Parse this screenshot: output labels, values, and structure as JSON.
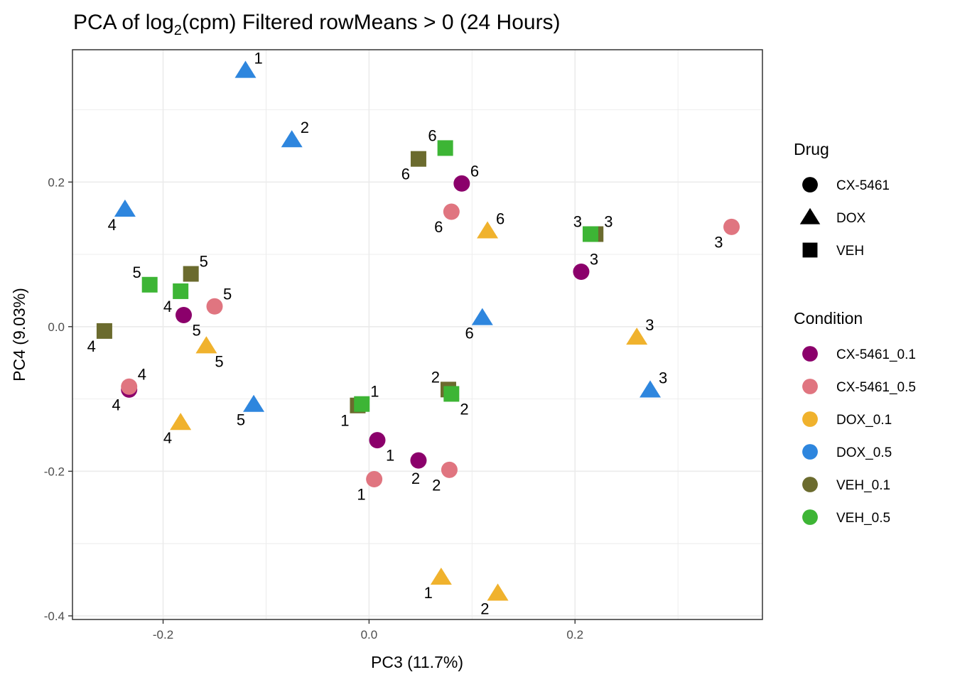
{
  "chart_data": {
    "type": "scatter",
    "title_prefix": "PCA of log",
    "title_sub": "2",
    "title_suffix": "(cpm) Filtered rowMeans > 0 (24 Hours)",
    "xlabel": "PC3 (11.7%)",
    "ylabel": "PC4 (9.03%)",
    "xlim": [
      -0.288,
      0.382
    ],
    "ylim": [
      -0.405,
      0.383
    ],
    "x_ticks": [
      -0.2,
      0.0,
      0.2
    ],
    "x_tick_labels": [
      "-0.2",
      "0.0",
      "0.2"
    ],
    "y_ticks": [
      -0.4,
      -0.2,
      0.0,
      0.2
    ],
    "y_tick_labels": [
      "-0.4",
      "-0.2",
      "0.0",
      "0.2"
    ],
    "grid": true,
    "legend_position": "right",
    "legends": {
      "drug": {
        "title": "Drug",
        "items": [
          {
            "label": "CX-5461",
            "shape": "circle"
          },
          {
            "label": "DOX",
            "shape": "triangle"
          },
          {
            "label": "VEH",
            "shape": "square"
          }
        ]
      },
      "condition": {
        "title": "Condition",
        "items": [
          {
            "label": "CX-5461_0.1",
            "color": "#8B006B"
          },
          {
            "label": "CX-5461_0.5",
            "color": "#E07580"
          },
          {
            "label": "DOX_0.1",
            "color": "#F0B22D"
          },
          {
            "label": "DOX_0.5",
            "color": "#2E86DE"
          },
          {
            "label": "VEH_0.1",
            "color": "#6B6B2E"
          },
          {
            "label": "VEH_0.5",
            "color": "#3DB535"
          }
        ]
      }
    },
    "points": [
      {
        "condition": "DOX_0.5",
        "shape": "triangle",
        "x": -0.12,
        "y": 0.354,
        "label": "1",
        "pos": "tr"
      },
      {
        "condition": "DOX_0.5",
        "shape": "triangle",
        "x": -0.075,
        "y": 0.258,
        "label": "2",
        "pos": "tr"
      },
      {
        "condition": "DOX_0.5",
        "shape": "triangle",
        "x": -0.237,
        "y": 0.162,
        "label": "4",
        "pos": "bl"
      },
      {
        "condition": "DOX_0.5",
        "shape": "triangle",
        "x": 0.11,
        "y": 0.012,
        "label": "6",
        "pos": "bl"
      },
      {
        "condition": "DOX_0.5",
        "shape": "triangle",
        "x": -0.112,
        "y": -0.108,
        "label": "5",
        "pos": "bl"
      },
      {
        "condition": "DOX_0.5",
        "shape": "triangle",
        "x": 0.273,
        "y": -0.088,
        "label": "3",
        "pos": "tr"
      },
      {
        "condition": "VEH_0.1",
        "shape": "square",
        "x": 0.048,
        "y": 0.232,
        "label": "6",
        "pos": "bl"
      },
      {
        "condition": "VEH_0.5",
        "shape": "square",
        "x": 0.074,
        "y": 0.247,
        "label": "6",
        "pos": "tl"
      },
      {
        "condition": "CX-5461_0.1",
        "shape": "circle",
        "x": 0.09,
        "y": 0.198,
        "label": "6",
        "pos": "tr"
      },
      {
        "condition": "CX-5461_0.5",
        "shape": "circle",
        "x": 0.08,
        "y": 0.159,
        "label": "6",
        "pos": "bl"
      },
      {
        "condition": "DOX_0.1",
        "shape": "triangle",
        "x": 0.115,
        "y": 0.132,
        "label": "6",
        "pos": "tr"
      },
      {
        "condition": "VEH_0.1",
        "shape": "square",
        "x": 0.22,
        "y": 0.128,
        "label": "3",
        "pos": "tr"
      },
      {
        "condition": "VEH_0.5",
        "shape": "square",
        "x": 0.215,
        "y": 0.128,
        "label": "3",
        "pos": "tl"
      },
      {
        "condition": "CX-5461_0.5",
        "shape": "circle",
        "x": 0.352,
        "y": 0.138,
        "label": "3",
        "pos": "bl"
      },
      {
        "condition": "CX-5461_0.1",
        "shape": "circle",
        "x": 0.206,
        "y": 0.076,
        "label": "3",
        "pos": "tr"
      },
      {
        "condition": "DOX_0.1",
        "shape": "triangle",
        "x": 0.26,
        "y": -0.015,
        "label": "3",
        "pos": "tr"
      },
      {
        "condition": "VEH_0.5",
        "shape": "square",
        "x": -0.213,
        "y": 0.058,
        "label": "5",
        "pos": "tl"
      },
      {
        "condition": "VEH_0.1",
        "shape": "square",
        "x": -0.173,
        "y": 0.073,
        "label": "5",
        "pos": "tr"
      },
      {
        "condition": "VEH_0.5",
        "shape": "square",
        "x": -0.183,
        "y": 0.049,
        "label": "4",
        "pos": "bl"
      },
      {
        "condition": "CX-5461_0.5",
        "shape": "circle",
        "x": -0.15,
        "y": 0.028,
        "label": "5",
        "pos": "tr"
      },
      {
        "condition": "CX-5461_0.1",
        "shape": "circle",
        "x": -0.18,
        "y": 0.016,
        "label": "5",
        "pos": "br"
      },
      {
        "condition": "VEH_0.1",
        "shape": "square",
        "x": -0.257,
        "y": -0.006,
        "label": "4",
        "pos": "bl"
      },
      {
        "condition": "DOX_0.1",
        "shape": "triangle",
        "x": -0.158,
        "y": -0.027,
        "label": "5",
        "pos": "br"
      },
      {
        "condition": "CX-5461_0.1",
        "shape": "circle",
        "x": -0.233,
        "y": -0.087,
        "label": "4",
        "pos": "bl"
      },
      {
        "condition": "CX-5461_0.5",
        "shape": "circle",
        "x": -0.233,
        "y": -0.083,
        "label": "4",
        "pos": "tr"
      },
      {
        "condition": "DOX_0.1",
        "shape": "triangle",
        "x": -0.183,
        "y": -0.133,
        "label": "4",
        "pos": "bl"
      },
      {
        "condition": "VEH_0.1",
        "shape": "square",
        "x": -0.011,
        "y": -0.109,
        "label": "1",
        "pos": "bl"
      },
      {
        "condition": "VEH_0.5",
        "shape": "square",
        "x": -0.007,
        "y": -0.107,
        "label": "1",
        "pos": "tr"
      },
      {
        "condition": "VEH_0.1",
        "shape": "square",
        "x": 0.077,
        "y": -0.087,
        "label": "2",
        "pos": "tl"
      },
      {
        "condition": "VEH_0.5",
        "shape": "square",
        "x": 0.08,
        "y": -0.093,
        "label": "2",
        "pos": "br"
      },
      {
        "condition": "CX-5461_0.1",
        "shape": "circle",
        "x": 0.008,
        "y": -0.157,
        "label": "1",
        "pos": "br"
      },
      {
        "condition": "CX-5461_0.1",
        "shape": "circle",
        "x": 0.048,
        "y": -0.185,
        "label": "2",
        "pos": "b"
      },
      {
        "condition": "CX-5461_0.5",
        "shape": "circle",
        "x": 0.078,
        "y": -0.198,
        "label": "2",
        "pos": "bl"
      },
      {
        "condition": "CX-5461_0.5",
        "shape": "circle",
        "x": 0.005,
        "y": -0.211,
        "label": "1",
        "pos": "bl"
      },
      {
        "condition": "DOX_0.1",
        "shape": "triangle",
        "x": 0.07,
        "y": -0.347,
        "label": "1",
        "pos": "bl"
      },
      {
        "condition": "DOX_0.1",
        "shape": "triangle",
        "x": 0.125,
        "y": -0.369,
        "label": "2",
        "pos": "bl"
      }
    ]
  }
}
